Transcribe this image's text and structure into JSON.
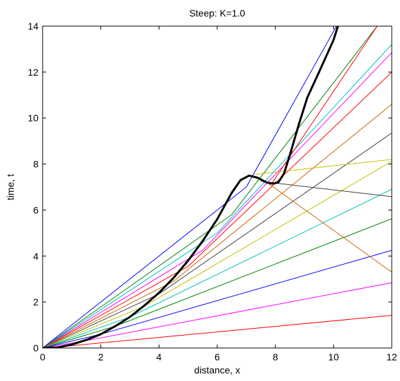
{
  "chart_data": {
    "type": "line",
    "title": "Steep: K=1.0",
    "xlabel": "distance, x",
    "ylabel": "time, t",
    "xlim": [
      0,
      12
    ],
    "ylim": [
      0,
      14
    ],
    "xticks": [
      "0",
      "2",
      "4",
      "6",
      "8",
      "10",
      "12"
    ],
    "yticks": [
      "0",
      "2",
      "4",
      "6",
      "8",
      "10",
      "12",
      "14"
    ],
    "grid": false,
    "legend": "none",
    "series": [
      {
        "color": "#ff0000",
        "x": [
          0.0,
          1.0,
          12.0
        ],
        "y": [
          0.0,
          0.1,
          1.42
        ]
      },
      {
        "color": "#ff00ff",
        "x": [
          0.0,
          1.5,
          12.0
        ],
        "y": [
          0.0,
          0.32,
          2.84
        ]
      },
      {
        "color": "#0000ff",
        "x": [
          0.0,
          2.0,
          12.0
        ],
        "y": [
          0.0,
          0.6,
          4.25
        ]
      },
      {
        "color": "#008000",
        "x": [
          0.0,
          2.5,
          12.0
        ],
        "y": [
          0.0,
          0.95,
          5.62
        ]
      },
      {
        "color": "#00bfbf",
        "x": [
          0.0,
          3.0,
          12.0
        ],
        "y": [
          0.0,
          1.35,
          6.9
        ]
      },
      {
        "color": "#bfbf00",
        "x": [
          0.0,
          3.5,
          12.0
        ],
        "y": [
          0.0,
          1.82,
          8.12
        ]
      },
      {
        "color": "#404040",
        "x": [
          0.0,
          4.0,
          12.0
        ],
        "y": [
          0.0,
          2.35,
          9.35
        ]
      },
      {
        "color": "#cc6600",
        "x": [
          0.0,
          4.5,
          12.0
        ],
        "y": [
          0.0,
          2.9,
          10.6
        ]
      },
      {
        "color": "#ff0000",
        "x": [
          0.0,
          5.0,
          12.0
        ],
        "y": [
          0.0,
          3.55,
          12.0
        ]
      },
      {
        "color": "#ff00ff",
        "x": [
          0.0,
          5.5,
          12.0
        ],
        "y": [
          0.0,
          4.25,
          12.85
        ]
      },
      {
        "color": "#00bfbf",
        "x": [
          0.0,
          6.0,
          12.0
        ],
        "y": [
          0.0,
          5.0,
          13.2
        ]
      },
      {
        "color": "#008000",
        "x": [
          0.0,
          6.5,
          11.5
        ],
        "y": [
          0.0,
          5.8,
          14.0
        ]
      },
      {
        "color": "#0000ff",
        "x": [
          0.0,
          7.0,
          10.1
        ],
        "y": [
          0.0,
          7.0,
          14.0
        ]
      },
      {
        "color": "#ff0000",
        "x": [
          7.9,
          11.5
        ],
        "y": [
          7.2,
          14.0
        ]
      },
      {
        "color": "#bfbf00",
        "x": [
          7.3,
          12.0
        ],
        "y": [
          7.55,
          8.2
        ]
      },
      {
        "color": "#404040",
        "x": [
          7.5,
          12.0
        ],
        "y": [
          7.25,
          6.58
        ]
      },
      {
        "color": "#cc6600",
        "x": [
          7.6,
          12.0
        ],
        "y": [
          7.3,
          3.3
        ]
      },
      {
        "color": "#000000",
        "width": "thick",
        "x": [
          0.0,
          0.5,
          1.0,
          1.5,
          2.0,
          2.5,
          3.0,
          3.5,
          4.0,
          4.5,
          5.0,
          5.5,
          6.0,
          6.5,
          6.8,
          7.1,
          7.4,
          7.7,
          7.9,
          8.1,
          8.3,
          8.5,
          8.8,
          9.1,
          9.5,
          10.0,
          10.15
        ],
        "y": [
          0.0,
          0.02,
          0.15,
          0.35,
          0.6,
          0.95,
          1.35,
          1.85,
          2.4,
          3.05,
          3.8,
          4.65,
          5.6,
          6.75,
          7.3,
          7.5,
          7.4,
          7.2,
          7.15,
          7.2,
          7.6,
          8.4,
          9.7,
          10.9,
          12.0,
          13.4,
          14.0
        ]
      }
    ]
  }
}
